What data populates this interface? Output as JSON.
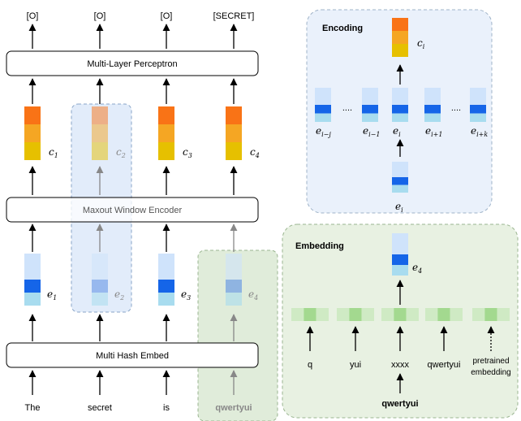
{
  "outputs": [
    "[O]",
    "[O]",
    "[O]",
    "[SECRET]"
  ],
  "layers": {
    "mlp": "Multi-Layer Perceptron",
    "maxout": "Maxout Window Encoder",
    "hash_embed": "Multi Hash Embed"
  },
  "input_words": [
    "The",
    "secret",
    "is",
    "qwertyui"
  ],
  "context_labels": [
    "c",
    "c",
    "c",
    "c"
  ],
  "context_subs": [
    "1",
    "2",
    "3",
    "4"
  ],
  "embed_labels": [
    "e",
    "e",
    "e",
    "e"
  ],
  "embed_subs": [
    "1",
    "2",
    "3",
    "4"
  ],
  "encoding_panel": {
    "title": "Encoding",
    "output_label": "c",
    "output_sub": "i",
    "window_subs": [
      "i−j",
      "i−1",
      "i",
      "i+1",
      "i+k"
    ],
    "dots": "....",
    "input_label": "e",
    "input_sub": "i"
  },
  "embedding_panel": {
    "title": "Embedding",
    "output_label": "e",
    "output_sub": "4",
    "features": [
      "q",
      "yui",
      "xxxx",
      "qwertyui"
    ],
    "pretrained": [
      "pretrained",
      "embedding"
    ],
    "word": "qwertyui"
  },
  "colors": {
    "orange_top": "#f97316",
    "orange_mid": "#f5a623",
    "yellow": "#e6c000",
    "blue_dark": "#1565e8",
    "blue_light": "#a8dcef",
    "blue_pale": "#cfe3fb",
    "panel_blue": "#eaf1fb",
    "panel_green": "#e8f1e2",
    "green_dark": "#a3d98f",
    "green_light": "#cfeac4"
  }
}
